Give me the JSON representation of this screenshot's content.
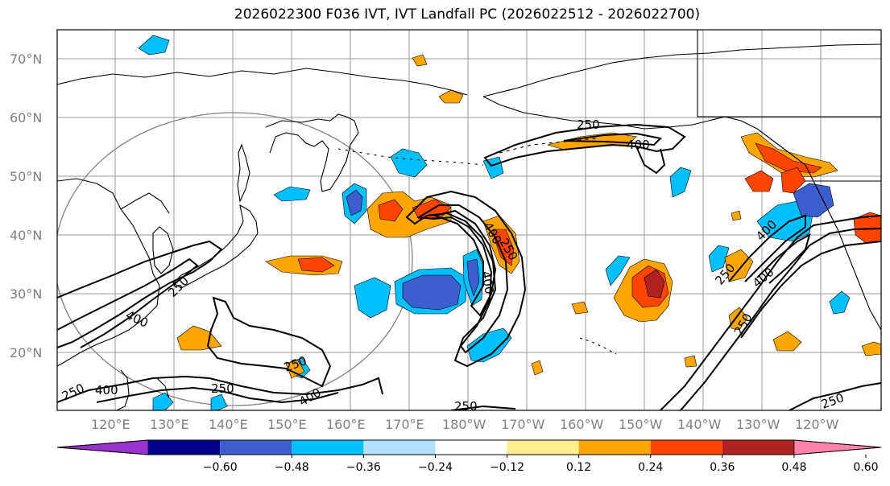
{
  "title": "2026022300 F036 IVT, IVT Landfall PC (2026022512 - 2026022700)",
  "lat_labels": [
    "70°N",
    "60°N",
    "50°N",
    "40°N",
    "30°N",
    "20°N"
  ],
  "lon_labels": [
    "120°E",
    "130°E",
    "140°E",
    "150°E",
    "160°E",
    "170°E",
    "180°W",
    "170°W",
    "160°W",
    "150°W",
    "140°W",
    "130°W",
    "120°W"
  ],
  "colorbar": {
    "ticks": [
      "−0.60",
      "−0.48",
      "−0.36",
      "−0.24",
      "−0.12",
      "0.12",
      "0.24",
      "0.36",
      "0.48",
      "0.60"
    ],
    "colors": [
      "#9932CC",
      "#00008B",
      "#3A5FCD",
      "#00BFFF",
      "#B0E2FF",
      "#FFFFFF",
      "#FFEC8B",
      "#FFA500",
      "#FF4500",
      "#B22222",
      "#FF82AB"
    ]
  },
  "contour_labels": [
    "250",
    "250",
    "400",
    "400",
    "250",
    "400",
    "250",
    "400",
    "250",
    "400",
    "250",
    "400",
    "250",
    "400",
    "250",
    "250",
    "250",
    "400",
    "250",
    "400",
    "250"
  ],
  "colors": {
    "land_outline": "#000000",
    "grid": "#999999",
    "circle": "#808080"
  }
}
